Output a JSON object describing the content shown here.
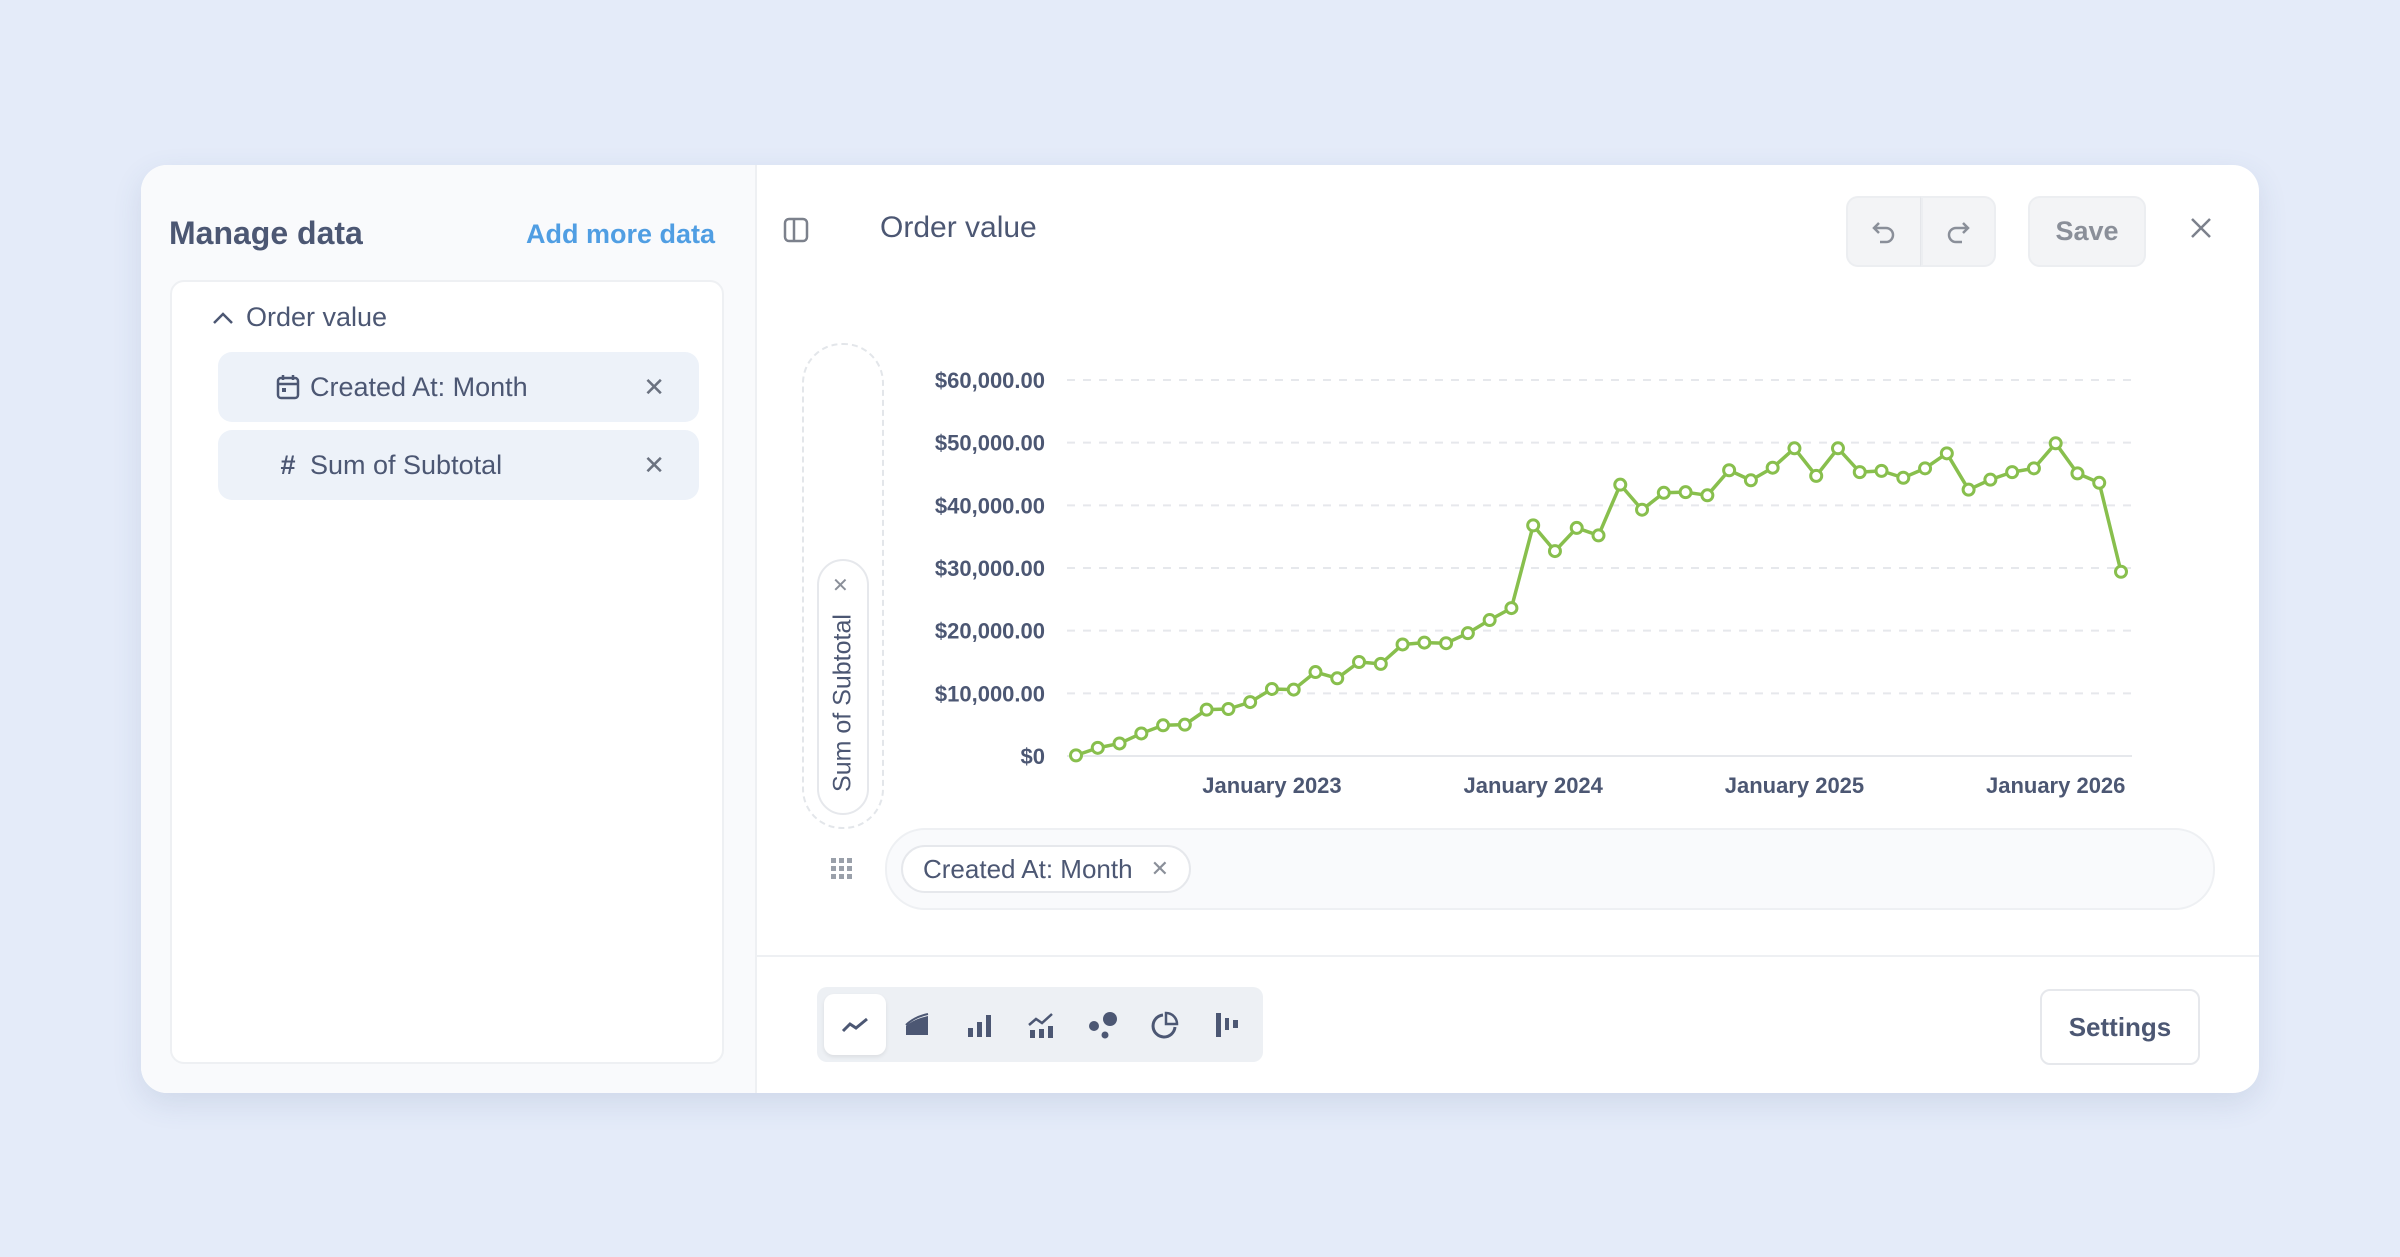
{
  "sidebar": {
    "title": "Manage data",
    "add_more_label": "Add more data",
    "group": {
      "label": "Order value",
      "items": [
        {
          "icon": "calendar-icon",
          "label": "Created At: Month"
        },
        {
          "icon": "hash-icon",
          "label": "Sum of Subtotal"
        }
      ]
    }
  },
  "header": {
    "title": "Order value",
    "save_label": "Save"
  },
  "axes": {
    "y_chip": "Sum of Subtotal",
    "x_chip": "Created At: Month"
  },
  "chart_types": [
    "line",
    "area",
    "bar",
    "combo",
    "scatter",
    "pie",
    "waterfall"
  ],
  "active_chart_type": "line",
  "settings_label": "Settings",
  "colors": {
    "series": "#88bf4d",
    "accent": "#509ee3",
    "text": "#4c5773"
  },
  "chart_data": {
    "type": "line",
    "title": "",
    "xlabel": "",
    "ylabel": "Sum of Subtotal",
    "x_start": "2022-04",
    "x_unit": "month",
    "x_tick_labels": [
      {
        "index": 9,
        "label": "January 2023"
      },
      {
        "index": 21,
        "label": "January 2024"
      },
      {
        "index": 33,
        "label": "January 2025"
      },
      {
        "index": 45,
        "label": "January 2026"
      }
    ],
    "y_ticks": [
      0,
      10000,
      20000,
      30000,
      40000,
      50000,
      60000
    ],
    "y_tick_labels": [
      "$0",
      "$10,000.00",
      "$20,000.00",
      "$30,000.00",
      "$40,000.00",
      "$50,000.00",
      "$60,000.00"
    ],
    "ylim": [
      0,
      60000
    ],
    "grid": true,
    "values": [
      100,
      1300,
      2000,
      3600,
      4900,
      5000,
      7400,
      7500,
      8600,
      10700,
      10600,
      13400,
      12400,
      15000,
      14700,
      17800,
      18100,
      18000,
      19600,
      21700,
      23600,
      36800,
      32700,
      36400,
      35200,
      43300,
      39300,
      42000,
      42100,
      41600,
      45600,
      44000,
      46000,
      49100,
      44700,
      49100,
      45300,
      45500,
      44400,
      45900,
      48300,
      42500,
      44100,
      45300,
      45900,
      49900,
      45100,
      43600,
      29400
    ]
  }
}
